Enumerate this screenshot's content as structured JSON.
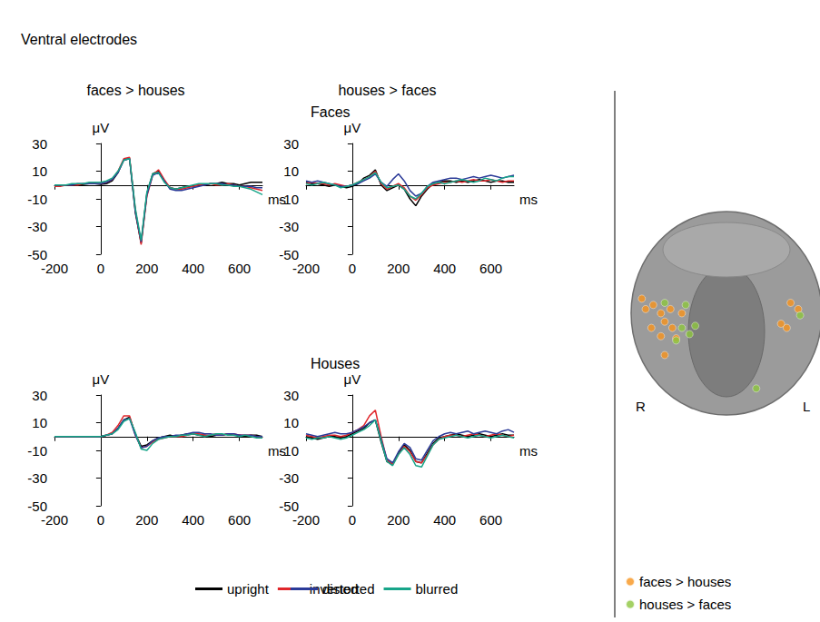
{
  "heading": "Ventral electrodes",
  "column_titles": [
    "faces > houses",
    "houses > faces"
  ],
  "row_titles": [
    "Faces",
    "Houses"
  ],
  "chart_data": [
    {
      "type": "line",
      "xlabel": "ms",
      "ylabel": "μV",
      "x": [
        -200,
        -175,
        -150,
        -125,
        -100,
        -75,
        -50,
        -25,
        0,
        25,
        50,
        75,
        100,
        125,
        150,
        175,
        200,
        225,
        250,
        275,
        300,
        325,
        350,
        375,
        400,
        425,
        450,
        475,
        500,
        525,
        550,
        575,
        600,
        625,
        650,
        675,
        700
      ],
      "xlim": [
        -200,
        700
      ],
      "xticks": [
        -200,
        0,
        200,
        400,
        600
      ],
      "ylim": [
        -50,
        30
      ],
      "yticks": [
        30,
        10,
        -10,
        -30,
        -50
      ],
      "grid": false,
      "legend": "bottom",
      "series": [
        {
          "name": "upright",
          "color": "#000000",
          "values": [
            0,
            0,
            0,
            0,
            0,
            0.5,
            1,
            1,
            0.5,
            1,
            3,
            9,
            18,
            19,
            -20,
            -42,
            -6,
            8,
            10,
            3,
            -2,
            -3,
            -2,
            -1,
            -1,
            0,
            0,
            1,
            1,
            2,
            1,
            1,
            0,
            1,
            2,
            2,
            2
          ]
        },
        {
          "name": "inverted",
          "color": "#e0262b",
          "values": [
            -1,
            -1,
            0,
            0,
            0,
            1,
            1,
            1,
            1,
            2,
            4,
            10,
            19,
            20,
            -18,
            -43,
            -8,
            7,
            11,
            4,
            -2,
            -3,
            -3,
            -2,
            -1,
            0,
            0,
            1,
            0,
            0,
            1,
            0,
            -1,
            -1,
            -2,
            -3,
            -4
          ]
        },
        {
          "name": "distorted",
          "color": "#2b3a98",
          "values": [
            0,
            0,
            0,
            0,
            1,
            1,
            1,
            1,
            1,
            2,
            4,
            9,
            18,
            19,
            -19,
            -41,
            -7,
            7,
            9,
            3,
            -3,
            -4,
            -4,
            -3,
            -2,
            -1,
            0,
            1,
            1,
            1,
            0,
            0,
            -1,
            -1,
            -1,
            -2,
            -2
          ]
        },
        {
          "name": "blurred",
          "color": "#17a589",
          "values": [
            0,
            0,
            0,
            1,
            1,
            1,
            2,
            2,
            2,
            3,
            5,
            10,
            18,
            19,
            -17,
            -40,
            -5,
            8,
            9,
            2,
            -2,
            -3,
            -2,
            -1,
            0,
            1,
            1,
            1,
            1,
            0,
            0,
            -1,
            -1,
            -2,
            -3,
            -5,
            -7
          ]
        }
      ]
    },
    {
      "type": "line",
      "xlabel": "ms",
      "ylabel": "μV",
      "x": [
        -200,
        -175,
        -150,
        -125,
        -100,
        -75,
        -50,
        -25,
        0,
        25,
        50,
        75,
        100,
        125,
        150,
        175,
        200,
        225,
        250,
        275,
        300,
        325,
        350,
        375,
        400,
        425,
        450,
        475,
        500,
        525,
        550,
        575,
        600,
        625,
        650,
        675,
        700
      ],
      "xlim": [
        -200,
        700
      ],
      "xticks": [
        -200,
        0,
        200,
        400,
        600
      ],
      "ylim": [
        -50,
        30
      ],
      "yticks": [
        30,
        10,
        -10,
        -30,
        -50
      ],
      "grid": false,
      "series": [
        {
          "name": "upright",
          "color": "#000000",
          "values": [
            2,
            1,
            1,
            0,
            -1,
            0,
            -1,
            -2,
            -1,
            1,
            5,
            7,
            11,
            0,
            -4,
            -2,
            0,
            -3,
            -10,
            -15,
            -8,
            -3,
            1,
            2,
            3,
            3,
            2,
            3,
            2,
            3,
            4,
            3,
            2,
            3,
            3,
            2,
            2
          ]
        },
        {
          "name": "inverted",
          "color": "#e0262b",
          "values": [
            1,
            2,
            1,
            1,
            0,
            1,
            0,
            -1,
            0,
            2,
            4,
            6,
            10,
            1,
            -3,
            -1,
            1,
            -2,
            -8,
            -11,
            -7,
            -2,
            0,
            1,
            2,
            2,
            3,
            2,
            3,
            4,
            3,
            3,
            4,
            3,
            2,
            3,
            3
          ]
        },
        {
          "name": "distorted",
          "color": "#2b3a98",
          "values": [
            3,
            2,
            3,
            2,
            1,
            0,
            -1,
            -1,
            0,
            1,
            3,
            5,
            8,
            2,
            -1,
            4,
            8,
            3,
            -4,
            -8,
            -6,
            -1,
            2,
            3,
            4,
            5,
            5,
            4,
            5,
            6,
            5,
            6,
            7,
            6,
            5,
            6,
            7
          ]
        },
        {
          "name": "blurred",
          "color": "#17a589",
          "values": [
            1,
            0,
            1,
            2,
            1,
            0,
            -2,
            -1,
            0,
            2,
            4,
            6,
            9,
            2,
            -2,
            -1,
            0,
            -3,
            -8,
            -10,
            -6,
            -1,
            1,
            2,
            1,
            2,
            3,
            4,
            3,
            2,
            3,
            5,
            4,
            3,
            5,
            6,
            6
          ]
        }
      ]
    },
    {
      "type": "line",
      "xlabel": "ms",
      "ylabel": "μV",
      "x": [
        -200,
        -175,
        -150,
        -125,
        -100,
        -75,
        -50,
        -25,
        0,
        25,
        50,
        75,
        100,
        125,
        150,
        175,
        200,
        225,
        250,
        275,
        300,
        325,
        350,
        375,
        400,
        425,
        450,
        475,
        500,
        525,
        550,
        575,
        600,
        625,
        650,
        675,
        700
      ],
      "xlim": [
        -200,
        700
      ],
      "xticks": [
        -200,
        0,
        200,
        400,
        600
      ],
      "ylim": [
        -50,
        30
      ],
      "yticks": [
        30,
        10,
        -10,
        -30,
        -50
      ],
      "grid": false,
      "series": [
        {
          "name": "upright",
          "color": "#000000",
          "values": [
            0,
            0,
            0,
            0,
            0,
            0,
            0,
            0,
            0,
            1,
            2,
            6,
            12,
            14,
            2,
            -7,
            -6,
            -3,
            -1,
            0,
            1,
            0,
            1,
            2,
            2,
            1,
            1,
            0,
            1,
            1,
            2,
            1,
            1,
            0,
            1,
            1,
            0
          ]
        },
        {
          "name": "inverted",
          "color": "#e0262b",
          "values": [
            0,
            0,
            0,
            0,
            0,
            0,
            0,
            0,
            0,
            1,
            3,
            8,
            15,
            15,
            1,
            -8,
            -7,
            -4,
            -2,
            -1,
            0,
            0,
            0,
            1,
            2,
            2,
            1,
            1,
            2,
            1,
            2,
            2,
            1,
            1,
            1,
            0,
            -1
          ]
        },
        {
          "name": "distorted",
          "color": "#2b3a98",
          "values": [
            0,
            0,
            0,
            0,
            0,
            0,
            0,
            0,
            0,
            1,
            2,
            6,
            12,
            13,
            1,
            -8,
            -7,
            -3,
            -1,
            0,
            0,
            1,
            1,
            2,
            3,
            3,
            2,
            2,
            1,
            1,
            2,
            2,
            1,
            1,
            1,
            0,
            0
          ]
        },
        {
          "name": "blurred",
          "color": "#17a589",
          "values": [
            0,
            0,
            0,
            0,
            0,
            0,
            0,
            0,
            0,
            1,
            2,
            5,
            11,
            13,
            3,
            -9,
            -10,
            -5,
            -2,
            -1,
            0,
            0,
            1,
            1,
            2,
            1,
            0,
            1,
            2,
            2,
            1,
            1,
            0,
            1,
            0,
            -1,
            -1
          ]
        }
      ]
    },
    {
      "type": "line",
      "xlabel": "ms",
      "ylabel": "μV",
      "x": [
        -200,
        -175,
        -150,
        -125,
        -100,
        -75,
        -50,
        -25,
        0,
        25,
        50,
        75,
        100,
        125,
        150,
        175,
        200,
        225,
        250,
        275,
        300,
        325,
        350,
        375,
        400,
        425,
        450,
        475,
        500,
        525,
        550,
        575,
        600,
        625,
        650,
        675,
        700
      ],
      "xlim": [
        -200,
        700
      ],
      "xticks": [
        -200,
        0,
        200,
        400,
        600
      ],
      "ylim": [
        -50,
        30
      ],
      "yticks": [
        30,
        10,
        -10,
        -30,
        -50
      ],
      "grid": false,
      "series": [
        {
          "name": "upright",
          "color": "#000000",
          "values": [
            0,
            -1,
            -2,
            -1,
            0,
            0,
            -1,
            0,
            2,
            4,
            6,
            10,
            12,
            -4,
            -18,
            -20,
            -12,
            -6,
            -10,
            -18,
            -19,
            -12,
            -5,
            -1,
            0,
            1,
            2,
            1,
            0,
            1,
            2,
            1,
            0,
            1,
            2,
            1,
            1
          ]
        },
        {
          "name": "inverted",
          "color": "#e0262b",
          "values": [
            1,
            0,
            -1,
            0,
            1,
            1,
            0,
            1,
            3,
            5,
            8,
            15,
            19,
            0,
            -17,
            -20,
            -13,
            -7,
            -11,
            -18,
            -19,
            -13,
            -6,
            -2,
            0,
            1,
            1,
            0,
            1,
            2,
            1,
            0,
            1,
            2,
            1,
            0,
            1
          ]
        },
        {
          "name": "distorted",
          "color": "#2b3a98",
          "values": [
            2,
            1,
            0,
            1,
            2,
            3,
            2,
            2,
            3,
            5,
            7,
            10,
            12,
            -2,
            -16,
            -19,
            -11,
            -5,
            -8,
            -16,
            -17,
            -10,
            -3,
            0,
            2,
            3,
            2,
            3,
            4,
            2,
            3,
            4,
            3,
            2,
            4,
            5,
            3
          ]
        },
        {
          "name": "blurred",
          "color": "#17a589",
          "values": [
            -1,
            -2,
            -1,
            -1,
            0,
            -1,
            -2,
            -1,
            1,
            3,
            5,
            8,
            12,
            -3,
            -18,
            -21,
            -13,
            -8,
            -13,
            -21,
            -22,
            -14,
            -6,
            -2,
            -1,
            0,
            1,
            0,
            -1,
            0,
            1,
            0,
            -1,
            0,
            1,
            0,
            -1
          ]
        }
      ]
    },
    {
      "type": "scatter",
      "hemisphere_labels": [
        "R",
        "L"
      ],
      "xlim": [
        0,
        100
      ],
      "ylim": [
        0,
        100
      ],
      "tick_labels": false,
      "legend": "bottom right",
      "series": [
        {
          "name": "faces > houses",
          "color": "#f7941d",
          "marker": "circle",
          "x": [
            8,
            10,
            14,
            18,
            23,
            20,
            24,
            29,
            13,
            26,
            18,
            20,
            86,
            90,
            81,
            84
          ],
          "values": [
            57,
            52,
            54,
            50,
            52,
            46,
            43,
            50,
            43,
            38,
            39,
            30,
            55,
            52,
            45,
            43
          ]
        },
        {
          "name": "houses > faces",
          "color": "#8dc63f",
          "marker": "circle",
          "x": [
            20,
            31,
            29,
            33,
            26,
            91,
            68,
            36
          ],
          "values": [
            55,
            54,
            43,
            40,
            37,
            49,
            14,
            44
          ]
        }
      ]
    }
  ]
}
